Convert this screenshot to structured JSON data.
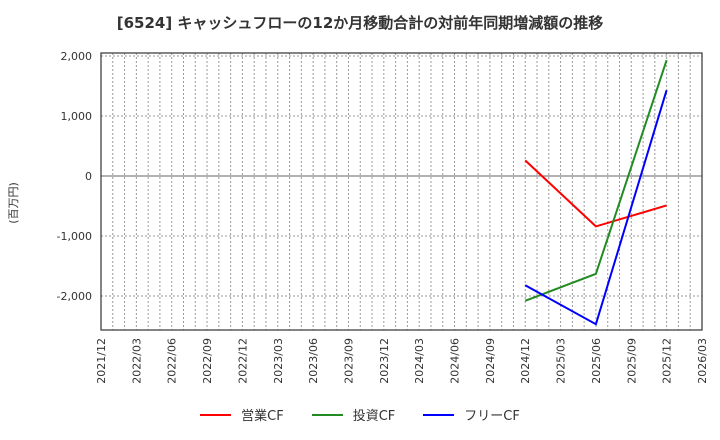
{
  "title": "[6524]  キャッシュフローの12か月移動合計の対前年同期増減額の推移",
  "chart_data": {
    "type": "line",
    "title": "[6524]  キャッシュフローの12か月移動合計の対前年同期増減額の推移",
    "xlabel": "",
    "ylabel": "(百万円)",
    "ylim": [
      -2600,
      2050
    ],
    "yticks": [
      2000,
      1000,
      0,
      -1000,
      -2000
    ],
    "ytick_labels": [
      "2,000",
      "1,000",
      "0",
      "-1,000",
      "-2,000"
    ],
    "xtick_labels": [
      "2021/12",
      "2022/03",
      "2022/06",
      "2022/09",
      "2022/12",
      "2023/03",
      "2023/06",
      "2023/09",
      "2023/12",
      "2024/03",
      "2024/06",
      "2024/09",
      "2024/12",
      "2025/03",
      "2025/06",
      "2025/09",
      "2025/12",
      "2026/03"
    ],
    "grid": true,
    "legend_position": "bottom",
    "x": [
      "2024/12",
      "2025/06",
      "2025/12"
    ],
    "series": [
      {
        "name": "営業CF",
        "color": "#ff0000",
        "values": [
          260,
          -840,
          -490
        ]
      },
      {
        "name": "投資CF",
        "color": "#228b22",
        "values": [
          -2080,
          -1630,
          1930
        ]
      },
      {
        "name": "フリーCF",
        "color": "#0000ff",
        "values": [
          -1820,
          -2470,
          1430
        ]
      }
    ]
  },
  "legend": [
    {
      "label": "営業CF",
      "color": "#ff0000"
    },
    {
      "label": "投資CF",
      "color": "#228b22"
    },
    {
      "label": "フリーCF",
      "color": "#0000ff"
    }
  ]
}
